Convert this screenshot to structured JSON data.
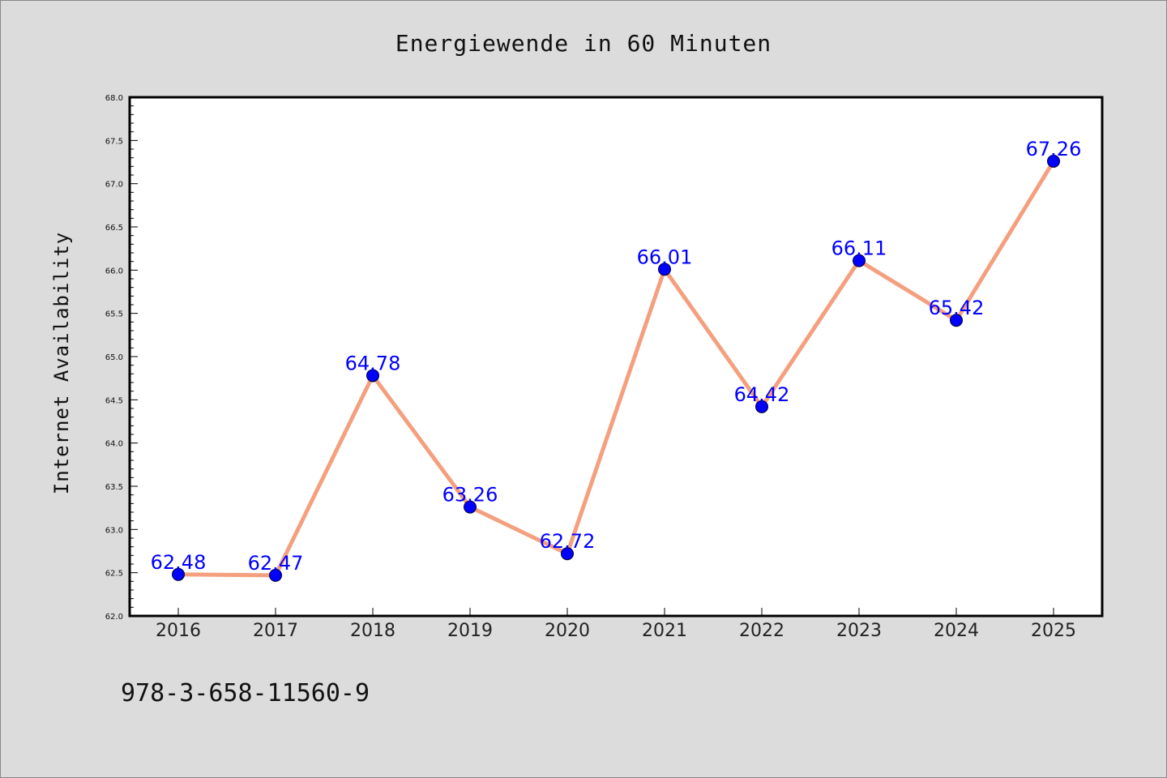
{
  "chart_data": {
    "type": "line",
    "title": "Energiewende in 60 Minuten",
    "xlabel": "",
    "ylabel": "Internet Availability",
    "x": [
      "2016",
      "2017",
      "2018",
      "2019",
      "2020",
      "2021",
      "2022",
      "2023",
      "2024",
      "2025"
    ],
    "series": [
      {
        "values": [
          62.48,
          62.47,
          64.78,
          63.26,
          62.72,
          66.01,
          64.42,
          66.11,
          65.42,
          67.26
        ],
        "line_color": "#f4a07f",
        "marker_color": "#0000ff"
      }
    ],
    "data_labels": [
      "62.48",
      "62.47",
      "64.78",
      "63.26",
      "62.72",
      "66.01",
      "64.42",
      "66.11",
      "65.42",
      "67.26"
    ],
    "ylim": [
      62.0,
      68.0
    ],
    "yticks": [
      "62.0",
      "62.5",
      "63.0",
      "63.5",
      "64.0",
      "64.5",
      "65.0",
      "65.5",
      "66.0",
      "66.5",
      "67.0",
      "67.5",
      "68.0"
    ],
    "grid": false,
    "legend": "none"
  },
  "footer": {
    "isbn": "978-3-658-11560-9"
  },
  "colors": {
    "background": "#dcdcdc",
    "plot_background": "#ffffff",
    "axis": "#000000"
  }
}
